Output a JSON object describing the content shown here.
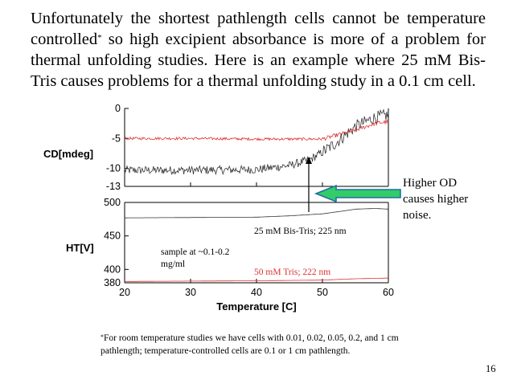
{
  "slide": {
    "intro_part1": "Unfortunately the shortest pathlength cells cannot be temperature controlled",
    "intro_mark": "*",
    "intro_part2": " so high excipient absorbance is more of a problem for thermal unfolding studies. Here is an example where 25 mM Bis-Tris causes problems for a thermal unfolding study in a 0.1 cm cell.",
    "callout": "Higher OD causes higher noise.",
    "footnote_mark": "*",
    "footnote_text": "For room temperature studies we have cells with 0.01, 0.02, 0.05, 0.2, and 1 cm pathlength; temperature-controlled cells are 0.1 or 1 cm pathlength.",
    "slide_number": "16"
  },
  "colors": {
    "black_trace": "#333333",
    "red_trace": "#e03030",
    "arrow_fill": "#33cc66",
    "arrow_stroke": "#1f6fa8",
    "axis": "#000000"
  },
  "chart_data": [
    {
      "type": "line",
      "panel": "top",
      "ylabel": "CD[mdeg]",
      "ylim": [
        -13,
        0
      ],
      "yticks": [
        0,
        -5,
        -10,
        -13
      ],
      "xlim": [
        20,
        60
      ],
      "series": [
        {
          "name": "25 mM Bis-Tris; 225 nm",
          "color": "#333333",
          "x": [
            20,
            30,
            40,
            45,
            48,
            50,
            52,
            55,
            58,
            60
          ],
          "y": [
            -10.3,
            -10.3,
            -10.2,
            -9.5,
            -8.6,
            -7.3,
            -5.8,
            -3.0,
            -1.5,
            -1.1
          ],
          "noise": 0.7
        },
        {
          "name": "50 mM Tris; 222 nm",
          "color": "#e03030",
          "x": [
            20,
            30,
            40,
            50,
            55,
            58,
            60
          ],
          "y": [
            -5.0,
            -5.0,
            -5.1,
            -5.1,
            -3.6,
            -2.5,
            -2.2
          ],
          "noise": 0.22
        }
      ]
    },
    {
      "type": "line",
      "panel": "bottom",
      "ylabel": "HT[V]",
      "xlabel": "Temperature [C]",
      "ylim": [
        380,
        500
      ],
      "yticks": [
        500,
        450,
        400,
        380
      ],
      "xlim": [
        20,
        60
      ],
      "xticks": [
        20,
        30,
        40,
        50,
        60
      ],
      "series": [
        {
          "name": "25 mM Bis-Tris; 225 nm",
          "color": "#333333",
          "x": [
            20,
            40,
            45,
            50,
            53,
            55,
            58,
            60
          ],
          "y": [
            477,
            478,
            480,
            483,
            487,
            490,
            491,
            490
          ]
        },
        {
          "name": "50 mM Tris; 222 nm",
          "color": "#e03030",
          "x": [
            20,
            40,
            50,
            55,
            60
          ],
          "y": [
            382,
            383,
            384,
            386,
            387
          ]
        }
      ],
      "annotations": [
        {
          "text": "25 mM Bis-Tris; 225 nm",
          "color": "#000000"
        },
        {
          "text": "sample at ~0.1-0.2 mg/ml",
          "color": "#000000"
        },
        {
          "text": "50 mM Tris; 222 nm",
          "color": "#e03030"
        }
      ]
    }
  ]
}
